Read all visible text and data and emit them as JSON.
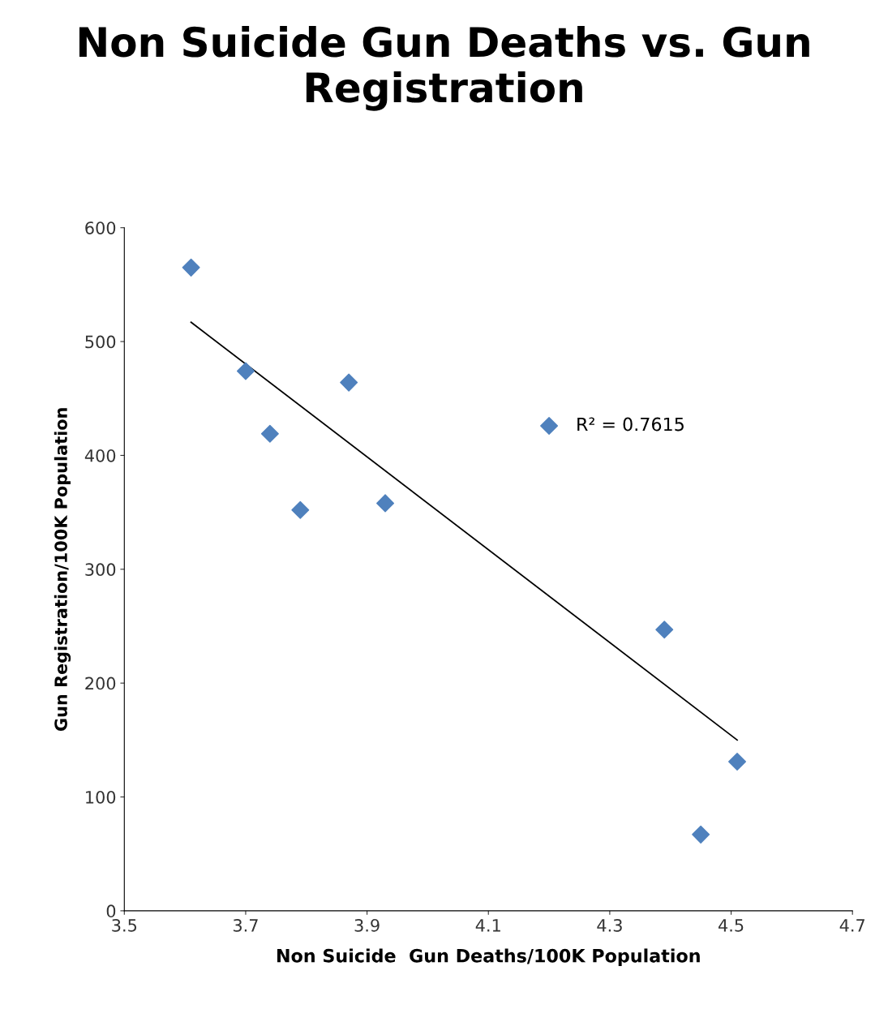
{
  "chart_data": {
    "type": "scatter",
    "title": "Non Suicide Gun Deaths vs. Gun Registration",
    "xlabel": "Non Suicide  Gun Deaths/100K Population",
    "ylabel": "Gun Registration/100K Population",
    "series": [
      {
        "color": "#4f81bd",
        "marker": "diamond",
        "x": [
          3.61,
          3.7,
          3.74,
          3.79,
          3.87,
          3.93,
          4.2,
          4.39,
          4.45,
          4.51
        ],
        "values": [
          565,
          474,
          419,
          352,
          464,
          358,
          426,
          247,
          67,
          131
        ]
      },
      {
        "type": "line",
        "color": "#000000",
        "marker": "none",
        "line_style": "solid",
        "x": [
          3.61,
          4.51
        ],
        "values": [
          517,
          150
        ]
      }
    ],
    "annotations": [
      "R² = 0.7615"
    ],
    "xlim": [
      3.5,
      4.7
    ],
    "xticks": [
      {
        "value": 3.5,
        "label": "3.5"
      },
      {
        "value": 3.7,
        "label": "3.7"
      },
      {
        "value": 3.9,
        "label": "3.9"
      },
      {
        "value": 4.1,
        "label": "4.1"
      },
      {
        "value": 4.3,
        "label": "4.3"
      },
      {
        "value": 4.5,
        "label": "4.5"
      },
      {
        "value": 4.7,
        "label": "4.7"
      }
    ],
    "ylim": [
      0,
      600
    ],
    "yticks": [
      0,
      100,
      200,
      300,
      400,
      500,
      600
    ],
    "grid": false,
    "legend": false
  }
}
